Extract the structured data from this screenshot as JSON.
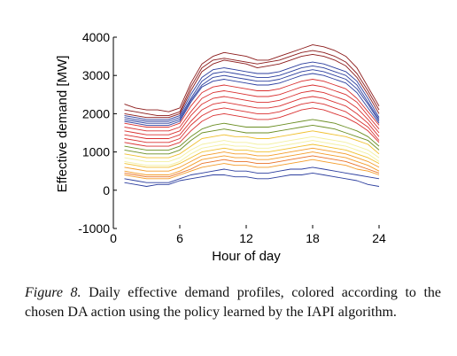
{
  "chart_data": {
    "type": "line",
    "xlabel": "Hour of day",
    "ylabel": "Effective demand [MW]",
    "x_ticks": [
      0,
      6,
      12,
      18,
      24
    ],
    "y_ticks": [
      -1000,
      0,
      1000,
      2000,
      3000,
      4000
    ],
    "xlim": [
      0,
      24
    ],
    "ylim": [
      -1000,
      4000
    ],
    "grid": false,
    "legend": "none",
    "x": [
      1,
      2,
      3,
      4,
      5,
      6,
      7,
      8,
      9,
      10,
      11,
      12,
      13,
      14,
      15,
      16,
      17,
      18,
      19,
      20,
      21,
      22,
      23,
      24
    ],
    "series": [
      {
        "color": "#8b1a1a",
        "values": [
          2250,
          2150,
          2100,
          2100,
          2050,
          2150,
          2800,
          3300,
          3500,
          3600,
          3550,
          3500,
          3400,
          3400,
          3500,
          3600,
          3700,
          3800,
          3750,
          3650,
          3500,
          3200,
          2700,
          2200
        ]
      },
      {
        "color": "#8b1a1a",
        "values": [
          2100,
          2050,
          2000,
          1950,
          1950,
          2050,
          2700,
          3200,
          3400,
          3450,
          3400,
          3350,
          3300,
          3350,
          3400,
          3500,
          3600,
          3650,
          3600,
          3500,
          3350,
          3050,
          2600,
          2100
        ]
      },
      {
        "color": "#8b1a1a",
        "values": [
          2000,
          1950,
          1900,
          1900,
          1900,
          2000,
          2600,
          3100,
          3300,
          3400,
          3350,
          3300,
          3200,
          3250,
          3300,
          3400,
          3500,
          3550,
          3500,
          3400,
          3250,
          2950,
          2500,
          2000
        ]
      },
      {
        "color": "#2c3e9e",
        "values": [
          1950,
          1900,
          1850,
          1850,
          1850,
          1950,
          2500,
          2950,
          3150,
          3200,
          3150,
          3100,
          3050,
          3050,
          3100,
          3200,
          3300,
          3350,
          3300,
          3200,
          3100,
          2850,
          2400,
          1900
        ]
      },
      {
        "color": "#2c3e9e",
        "values": [
          1900,
          1850,
          1800,
          1800,
          1800,
          1900,
          2400,
          2850,
          3050,
          3100,
          3050,
          3000,
          2950,
          2950,
          3000,
          3100,
          3200,
          3250,
          3200,
          3100,
          3000,
          2750,
          2300,
          1850
        ]
      },
      {
        "color": "#2c3e9e",
        "values": [
          1850,
          1800,
          1750,
          1750,
          1750,
          1850,
          2350,
          2750,
          2950,
          3000,
          2950,
          2900,
          2850,
          2850,
          2900,
          3000,
          3100,
          3150,
          3100,
          3000,
          2900,
          2650,
          2250,
          1800
        ]
      },
      {
        "color": "#2c3e9e",
        "values": [
          1800,
          1750,
          1700,
          1700,
          1700,
          1800,
          2300,
          2700,
          2850,
          2900,
          2850,
          2800,
          2750,
          2750,
          2800,
          2900,
          3000,
          3050,
          3000,
          2900,
          2800,
          2550,
          2150,
          1750
        ]
      },
      {
        "color": "#d93030",
        "values": [
          1750,
          1700,
          1650,
          1650,
          1650,
          1750,
          2200,
          2550,
          2700,
          2750,
          2700,
          2650,
          2600,
          2600,
          2650,
          2750,
          2850,
          2900,
          2850,
          2750,
          2650,
          2400,
          2050,
          1700
        ]
      },
      {
        "color": "#d93030",
        "values": [
          1650,
          1600,
          1550,
          1550,
          1550,
          1650,
          2050,
          2400,
          2550,
          2600,
          2550,
          2500,
          2450,
          2450,
          2500,
          2600,
          2700,
          2750,
          2700,
          2600,
          2500,
          2300,
          1950,
          1600
        ]
      },
      {
        "color": "#d93030",
        "values": [
          1550,
          1500,
          1450,
          1450,
          1450,
          1550,
          1950,
          2250,
          2400,
          2450,
          2400,
          2350,
          2300,
          2300,
          2350,
          2450,
          2550,
          2600,
          2550,
          2450,
          2350,
          2150,
          1850,
          1500
        ]
      },
      {
        "color": "#d93030",
        "values": [
          1450,
          1400,
          1350,
          1350,
          1350,
          1450,
          1800,
          2100,
          2250,
          2300,
          2250,
          2200,
          2150,
          2150,
          2200,
          2300,
          2400,
          2450,
          2400,
          2300,
          2200,
          2000,
          1750,
          1400
        ]
      },
      {
        "color": "#d93030",
        "values": [
          1350,
          1300,
          1250,
          1250,
          1250,
          1350,
          1700,
          1950,
          2100,
          2150,
          2100,
          2050,
          2000,
          2000,
          2050,
          2150,
          2250,
          2300,
          2250,
          2150,
          2050,
          1850,
          1650,
          1300
        ]
      },
      {
        "color": "#d93030",
        "values": [
          1250,
          1200,
          1150,
          1150,
          1150,
          1250,
          1550,
          1800,
          1950,
          2000,
          1950,
          1900,
          1850,
          1850,
          1900,
          2000,
          2100,
          2150,
          2100,
          2000,
          1900,
          1750,
          1550,
          1250
        ]
      },
      {
        "color": "#6b8e23",
        "values": [
          1150,
          1100,
          1050,
          1050,
          1050,
          1150,
          1400,
          1600,
          1700,
          1750,
          1700,
          1650,
          1650,
          1650,
          1700,
          1750,
          1800,
          1850,
          1800,
          1750,
          1650,
          1550,
          1400,
          1150
        ]
      },
      {
        "color": "#6b8e23",
        "values": [
          1050,
          1000,
          950,
          950,
          950,
          1050,
          1300,
          1500,
          1550,
          1600,
          1550,
          1500,
          1500,
          1500,
          1550,
          1600,
          1650,
          1700,
          1650,
          1600,
          1500,
          1400,
          1300,
          1050
        ]
      },
      {
        "color": "#f0c030",
        "values": [
          950,
          900,
          850,
          850,
          850,
          950,
          1150,
          1350,
          1400,
          1450,
          1400,
          1400,
          1350,
          1350,
          1400,
          1450,
          1500,
          1550,
          1500,
          1450,
          1400,
          1300,
          1200,
          950
        ]
      },
      {
        "color": "#f3f0a0",
        "values": [
          850,
          800,
          750,
          750,
          750,
          850,
          1050,
          1200,
          1250,
          1300,
          1250,
          1250,
          1200,
          1200,
          1250,
          1300,
          1350,
          1400,
          1350,
          1300,
          1250,
          1150,
          1050,
          850
        ]
      },
      {
        "color": "#f3f0a0",
        "values": [
          750,
          700,
          650,
          650,
          650,
          750,
          950,
          1100,
          1150,
          1200,
          1150,
          1150,
          1100,
          1100,
          1150,
          1200,
          1250,
          1300,
          1250,
          1200,
          1150,
          1050,
          950,
          750
        ]
      },
      {
        "color": "#f0c030",
        "values": [
          700,
          650,
          600,
          600,
          600,
          700,
          850,
          1000,
          1050,
          1100,
          1050,
          1050,
          1000,
          1000,
          1050,
          1100,
          1150,
          1200,
          1150,
          1100,
          1050,
          950,
          850,
          700
        ]
      },
      {
        "color": "#f39c2a",
        "values": [
          600,
          550,
          500,
          500,
          500,
          600,
          750,
          900,
          950,
          1000,
          950,
          950,
          900,
          900,
          950,
          1000,
          1050,
          1100,
          1050,
          1000,
          950,
          850,
          750,
          600
        ]
      },
      {
        "color": "#f39c2a",
        "values": [
          500,
          450,
          400,
          400,
          400,
          500,
          650,
          800,
          850,
          900,
          850,
          850,
          800,
          800,
          850,
          900,
          950,
          1000,
          950,
          900,
          850,
          750,
          650,
          500
        ]
      },
      {
        "color": "#e8732a",
        "values": [
          450,
          400,
          350,
          350,
          350,
          450,
          550,
          700,
          750,
          800,
          750,
          750,
          700,
          700,
          750,
          800,
          850,
          900,
          850,
          800,
          750,
          650,
          550,
          450
        ]
      },
      {
        "color": "#f39c2a",
        "values": [
          400,
          350,
          300,
          300,
          300,
          400,
          500,
          600,
          650,
          700,
          650,
          650,
          600,
          600,
          650,
          700,
          750,
          800,
          750,
          700,
          650,
          550,
          500,
          400
        ]
      },
      {
        "color": "#2c3e9e",
        "values": [
          300,
          250,
          200,
          200,
          200,
          300,
          400,
          450,
          500,
          550,
          500,
          500,
          450,
          450,
          500,
          550,
          550,
          600,
          550,
          500,
          450,
          400,
          350,
          300
        ]
      },
      {
        "color": "#2c3e9e",
        "values": [
          200,
          150,
          100,
          150,
          150,
          250,
          300,
          350,
          400,
          400,
          350,
          350,
          300,
          300,
          350,
          400,
          400,
          450,
          400,
          350,
          300,
          250,
          150,
          100
        ]
      }
    ]
  },
  "caption": {
    "label": "Figure 8.",
    "text": "Daily effective demand profiles, colored according to the chosen DA action using the policy learned by the IAPI algorithm."
  }
}
